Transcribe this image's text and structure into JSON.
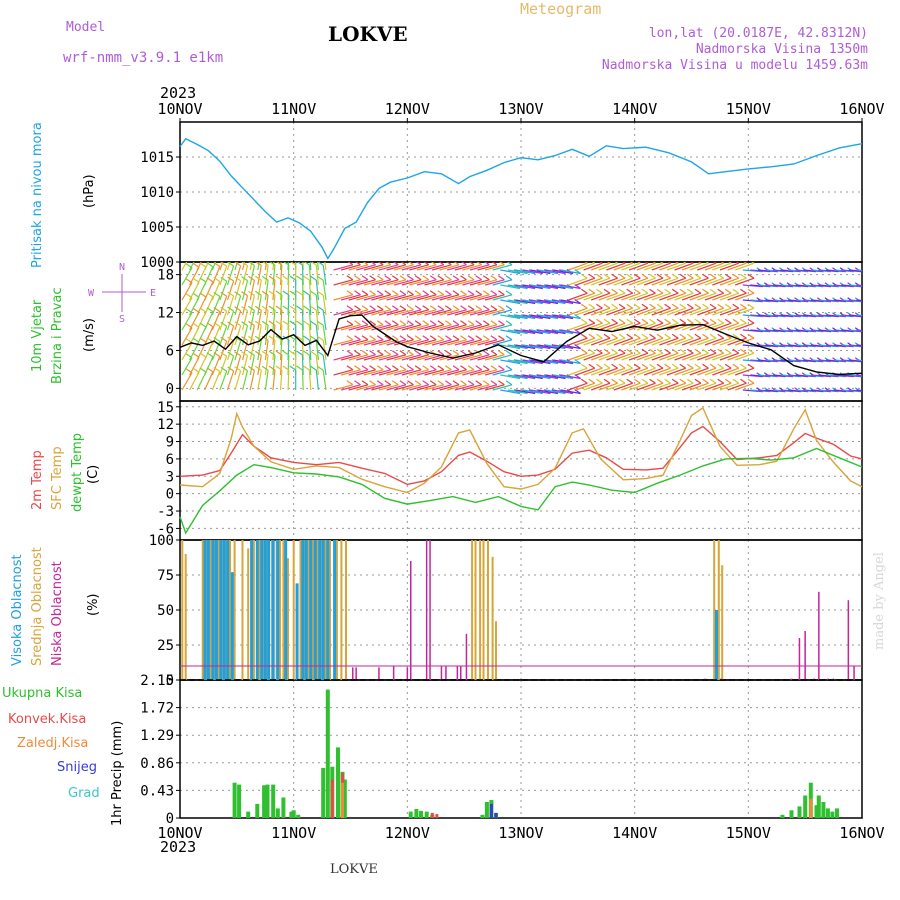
{
  "header": {
    "model_label": "Model",
    "model_name": "wrf-nmm_v3.9.1 e1km",
    "station": "LOKVE",
    "meteogram": "Meteogram",
    "coords": "lon,lat (20.0187E, 42.8312N)",
    "elevation": "Nadmorska Visina 1350m",
    "elevation_model": "Nadmorska Visina u modelu 1459.63m",
    "year_top": "2023",
    "year_bottom": "2023",
    "footer": "LOKVE",
    "watermark": "made by Angel"
  },
  "colors": {
    "pressure": "#1ea5e6",
    "temp2m": "#e84a4a",
    "sfc_temp": "#d9a43a",
    "dewpoint": "#2ec02e",
    "high_cloud": "#1e9fe0",
    "mid_cloud": "#d9a43a",
    "low_cloud": "#c2269a",
    "precip_total": "#2ec02e",
    "precip_conv": "#e84a4a",
    "precip_frz": "#f08a3a",
    "precip_snow": "#3a3ad6",
    "precip_hail": "#3ac6c6"
  },
  "chart_data": [
    {
      "type": "line",
      "panel": "pressure",
      "ylabel_lines": [
        "Pritisak na nivou mora",
        "(hPa)"
      ],
      "ylim": [
        1000,
        1020
      ],
      "yticks": [
        1000,
        1005,
        1010,
        1015
      ],
      "x_categories": [
        "10NOV",
        "11NOV",
        "12NOV",
        "13NOV",
        "14NOV",
        "15NOV",
        "16NOV"
      ],
      "series": [
        {
          "x": [
            0,
            0.05,
            0.15,
            0.25,
            0.35,
            0.45,
            0.55,
            0.65,
            0.75,
            0.85,
            0.95,
            1.05,
            1.15,
            1.25,
            1.3,
            1.35,
            1.45,
            1.55,
            1.65,
            1.75,
            1.85,
            2.0,
            2.15,
            2.3,
            2.45,
            2.55,
            2.7,
            2.85,
            3.0,
            3.15,
            3.3,
            3.45,
            3.6,
            3.75,
            3.9,
            4.1,
            4.3,
            4.5,
            4.65,
            4.8,
            5.0,
            5.2,
            5.4,
            5.6,
            5.8,
            6.0
          ],
          "values": [
            1016.5,
            1017.6,
            1016.8,
            1015.9,
            1014.4,
            1012.3,
            1010.6,
            1008.9,
            1007.2,
            1005.7,
            1006.3,
            1005.6,
            1004.4,
            1002.1,
            1000.5,
            1001.8,
            1004.8,
            1005.7,
            1008.5,
            1010.5,
            1011.4,
            1012.0,
            1012.9,
            1012.6,
            1011.2,
            1012.2,
            1013.1,
            1014.2,
            1014.9,
            1014.6,
            1015.2,
            1016.1,
            1015.1,
            1016.6,
            1016.2,
            1016.4,
            1015.6,
            1014.3,
            1012.6,
            1012.9,
            1013.3,
            1013.6,
            1014.0,
            1015.2,
            1016.3,
            1016.9
          ]
        }
      ]
    },
    {
      "type": "line",
      "panel": "wind",
      "ylabel_lines": [
        "10m Vjetar",
        "Brzina i Pravac",
        "(m/s)"
      ],
      "compass": {
        "n": "N",
        "s": "S",
        "w": "W",
        "e": "E"
      },
      "ylim": [
        -2,
        20
      ],
      "yticks": [
        0,
        6,
        12,
        18
      ],
      "series": [
        {
          "name": "wind speed",
          "x": [
            0,
            0.1,
            0.2,
            0.3,
            0.4,
            0.5,
            0.6,
            0.7,
            0.8,
            0.9,
            1.0,
            1.1,
            1.2,
            1.3,
            1.4,
            1.5,
            1.6,
            1.7,
            1.8,
            1.9,
            2.0,
            2.2,
            2.4,
            2.6,
            2.8,
            3.0,
            3.2,
            3.4,
            3.6,
            3.8,
            4.0,
            4.2,
            4.4,
            4.6,
            4.8,
            5.0,
            5.2,
            5.4,
            5.6,
            5.8,
            6.0
          ],
          "values": [
            6.5,
            7.2,
            6.8,
            7.5,
            6.2,
            8.2,
            6.9,
            7.5,
            9.3,
            7.8,
            8.5,
            6.8,
            7.6,
            5.2,
            11.0,
            11.5,
            11.6,
            9.8,
            8.6,
            7.4,
            6.6,
            5.6,
            4.8,
            5.6,
            6.9,
            5.2,
            4.2,
            7.4,
            9.5,
            9.0,
            9.8,
            9.2,
            10.0,
            10.1,
            8.6,
            7.2,
            6.1,
            3.6,
            2.6,
            2.2,
            2.4
          ]
        }
      ]
    },
    {
      "type": "line",
      "panel": "temperature",
      "ylabel_lines": [
        "2m Temp",
        "SFC Temp",
        "dewpt Temp",
        "(C)"
      ],
      "ylim": [
        -8,
        16
      ],
      "yticks": [
        -6,
        -3,
        0,
        3,
        6,
        9,
        12,
        15
      ],
      "series": [
        {
          "name": "2m Temp",
          "x": [
            0,
            0.2,
            0.35,
            0.45,
            0.55,
            0.65,
            0.8,
            1.0,
            1.2,
            1.4,
            1.6,
            1.8,
            2.0,
            2.15,
            2.3,
            2.45,
            2.55,
            2.7,
            2.85,
            3.0,
            3.15,
            3.3,
            3.45,
            3.6,
            3.75,
            3.9,
            4.1,
            4.25,
            4.4,
            4.5,
            4.6,
            4.75,
            4.9,
            5.1,
            5.25,
            5.4,
            5.5,
            5.6,
            5.75,
            5.9,
            6.0
          ],
          "values": [
            3.0,
            3.2,
            4.0,
            7.0,
            10.2,
            8.2,
            6.2,
            5.4,
            5.0,
            5.4,
            4.4,
            3.5,
            1.6,
            2.2,
            3.8,
            6.6,
            7.2,
            5.6,
            3.8,
            3.0,
            3.2,
            4.2,
            7.0,
            7.5,
            6.2,
            4.2,
            4.1,
            4.4,
            8.0,
            10.5,
            11.6,
            9.0,
            5.9,
            6.2,
            6.6,
            8.8,
            10.4,
            9.6,
            8.5,
            6.5,
            6.0
          ]
        },
        {
          "name": "SFC Temp",
          "x": [
            0,
            0.2,
            0.35,
            0.45,
            0.5,
            0.55,
            0.65,
            0.8,
            1.0,
            1.2,
            1.4,
            1.6,
            1.8,
            2.0,
            2.15,
            2.3,
            2.45,
            2.55,
            2.7,
            2.85,
            3.0,
            3.15,
            3.3,
            3.45,
            3.55,
            3.7,
            3.9,
            4.1,
            4.25,
            4.4,
            4.5,
            4.6,
            4.75,
            4.9,
            5.1,
            5.25,
            5.4,
            5.5,
            5.6,
            5.75,
            5.9,
            6.0
          ],
          "values": [
            1.5,
            1.2,
            3.5,
            9.5,
            13.8,
            11.5,
            8.2,
            5.5,
            4.2,
            4.8,
            4.5,
            2.5,
            1.2,
            0.2,
            1.8,
            4.6,
            10.5,
            11.0,
            5.2,
            1.2,
            0.8,
            1.6,
            4.4,
            10.5,
            11.2,
            6.0,
            2.4,
            2.6,
            3.2,
            9.2,
            13.5,
            14.8,
            8.2,
            4.9,
            5.0,
            5.6,
            11.2,
            14.5,
            9.2,
            5.4,
            2.2,
            1.2
          ]
        },
        {
          "name": "dewpt Temp",
          "x": [
            0,
            0.05,
            0.2,
            0.35,
            0.5,
            0.65,
            0.8,
            1.0,
            1.2,
            1.4,
            1.6,
            1.8,
            2.0,
            2.2,
            2.4,
            2.6,
            2.8,
            3.0,
            3.15,
            3.3,
            3.45,
            3.6,
            3.8,
            4.0,
            4.2,
            4.4,
            4.6,
            4.8,
            5.0,
            5.2,
            5.4,
            5.6,
            5.8,
            6.0
          ],
          "values": [
            -4.0,
            -6.8,
            -2.0,
            0.5,
            3.2,
            5.0,
            4.5,
            3.6,
            3.4,
            2.9,
            1.6,
            -0.8,
            -1.8,
            -1.2,
            -0.5,
            -1.5,
            -0.5,
            -2.2,
            -2.8,
            1.2,
            2.0,
            1.5,
            0.6,
            0.2,
            1.8,
            3.2,
            4.8,
            6.0,
            6.1,
            5.8,
            6.2,
            7.8,
            6.2,
            4.6
          ]
        }
      ]
    },
    {
      "type": "bar",
      "panel": "clouds",
      "ylabel_lines": [
        "Visoka Oblacnost",
        "Srednja Oblacnost",
        "Niska Oblacnost",
        "(%)"
      ],
      "ylim": [
        0,
        100
      ],
      "yticks": [
        0,
        25,
        50,
        75,
        100
      ],
      "series": [
        {
          "name": "Visoka Oblacnost",
          "x": [
            0.22,
            0.25,
            0.29,
            0.32,
            0.36,
            0.39,
            0.42,
            0.46,
            0.63,
            0.68,
            0.72,
            0.75,
            0.78,
            0.82,
            0.86,
            0.93,
            1.03,
            1.08,
            1.11,
            1.15,
            1.19,
            1.23,
            1.26,
            1.3,
            1.36,
            4.72
          ],
          "values": [
            100,
            100,
            100,
            100,
            100,
            100,
            100,
            77,
            100,
            100,
            100,
            100,
            100,
            100,
            100,
            100,
            69,
            100,
            100,
            100,
            100,
            100,
            100,
            100,
            100,
            50
          ]
        },
        {
          "name": "Srednja Oblacnost",
          "x": [
            0.02,
            0.05,
            0.2,
            0.24,
            0.27,
            0.31,
            0.34,
            0.38,
            0.41,
            0.44,
            0.48,
            0.55,
            0.6,
            0.65,
            0.7,
            0.74,
            0.77,
            0.81,
            0.85,
            0.88,
            0.91,
            0.95,
            1.0,
            1.06,
            1.1,
            1.13,
            1.17,
            1.21,
            1.25,
            1.28,
            1.32,
            1.38,
            1.42,
            1.46,
            2.57,
            2.6,
            2.64,
            2.67,
            2.71,
            2.75,
            2.78,
            4.7,
            4.74,
            4.77
          ],
          "values": [
            100,
            90,
            100,
            100,
            100,
            100,
            100,
            100,
            100,
            100,
            100,
            100,
            94,
            100,
            100,
            100,
            100,
            100,
            100,
            100,
            100,
            87,
            100,
            100,
            100,
            100,
            100,
            100,
            100,
            100,
            100,
            100,
            100,
            100,
            100,
            100,
            100,
            100,
            100,
            88,
            42,
            100,
            100,
            82
          ]
        },
        {
          "name": "Niska Oblacnost",
          "x": [
            1.52,
            1.55,
            1.75,
            1.88,
            2.0,
            2.03,
            2.17,
            2.2,
            2.3,
            2.34,
            2.44,
            2.47,
            2.52,
            4.62,
            4.76,
            5.38,
            5.45,
            5.5,
            5.58,
            5.62,
            5.7,
            5.75,
            5.88,
            5.93
          ],
          "values": [
            9,
            9,
            9,
            10,
            9,
            85,
            100,
            100,
            10,
            10,
            10,
            10,
            33,
            1,
            1,
            1,
            30,
            35,
            1,
            63,
            1,
            1,
            57,
            10
          ]
        }
      ]
    },
    {
      "type": "bar",
      "panel": "precip",
      "ylabel_lines": [
        "1hr Precip (mm)"
      ],
      "ylim": [
        0,
        2.15
      ],
      "yticks": [
        0,
        0.43,
        0.86,
        1.29,
        1.72,
        2.15
      ],
      "legend": [
        "Ukupna Kisa",
        "Konvek.Kisa",
        "Zaledj.Kisa",
        "Snijeg",
        "Grad"
      ],
      "series": [
        {
          "name": "Ukupna Kisa",
          "x": [
            0.48,
            0.52,
            0.6,
            0.68,
            0.74,
            0.77,
            0.82,
            0.86,
            0.91,
            0.98,
            1.0,
            1.04,
            1.26,
            1.3,
            1.34,
            1.39,
            1.43,
            1.45,
            2.03,
            2.08,
            2.12,
            2.17,
            2.22,
            2.66,
            2.7,
            2.74,
            2.78,
            5.3,
            5.38,
            5.45,
            5.5,
            5.55,
            5.6,
            5.62,
            5.66,
            5.7,
            5.74,
            5.78
          ],
          "values": [
            0.55,
            0.52,
            0.1,
            0.22,
            0.51,
            0.52,
            0.52,
            0.15,
            0.32,
            0.1,
            0.12,
            0.05,
            0.78,
            2.0,
            0.8,
            1.1,
            0.72,
            0.6,
            0.1,
            0.14,
            0.11,
            0.1,
            0.05,
            0.05,
            0.25,
            0.28,
            0.08,
            0.05,
            0.12,
            0.18,
            0.35,
            0.55,
            0.2,
            0.35,
            0.25,
            0.15,
            0.1,
            0.15
          ]
        },
        {
          "name": "Konvek.Kisa",
          "x": [
            1.34,
            1.43,
            2.22,
            2.26
          ],
          "values": [
            0.6,
            0.7,
            0.08,
            0.06
          ]
        },
        {
          "name": "Zaledj.Kisa",
          "x": [
            1.43,
            5.55
          ],
          "values": [
            0.55,
            0.3
          ]
        },
        {
          "name": "Snijeg",
          "x": [
            2.74,
            2.78
          ],
          "values": [
            0.22,
            0.08
          ]
        }
      ]
    }
  ]
}
